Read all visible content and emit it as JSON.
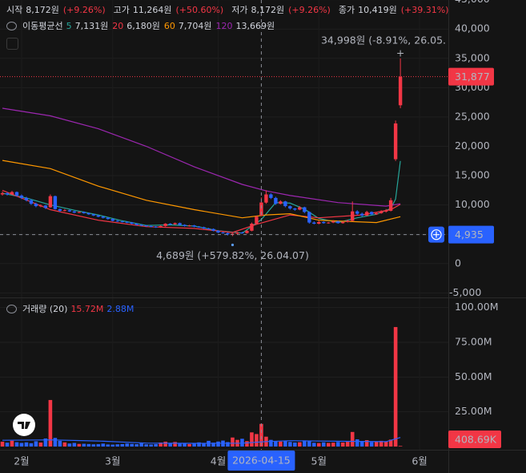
{
  "chart_data": {
    "type": "candlestick",
    "header": [
      {
        "label": "시작",
        "value": "8,172원",
        "change": "(+9.26%)"
      },
      {
        "label": "고가",
        "value": "11,264원",
        "change": "(+50.60%)"
      },
      {
        "label": "저가",
        "value": "8,172원",
        "change": "(+9.26%)"
      },
      {
        "label": "종가",
        "value": "10,419원",
        "change": "(+39.31%)"
      }
    ],
    "up_color": "#f23645",
    "down_color": "#2962ff",
    "ohlc": [
      [
        11800,
        12300,
        11600,
        12000
      ],
      [
        12000,
        12200,
        11600,
        11800
      ],
      [
        11800,
        12400,
        11700,
        12200
      ],
      [
        12200,
        12300,
        11400,
        11600
      ],
      [
        11600,
        11800,
        11000,
        11200
      ],
      [
        11200,
        11400,
        10600,
        10800
      ],
      [
        10800,
        11000,
        10000,
        10200
      ],
      [
        10200,
        10400,
        9600,
        9800
      ],
      [
        9800,
        10100,
        9600,
        9900
      ],
      [
        9900,
        10000,
        9300,
        9500
      ],
      [
        9600,
        11800,
        9500,
        11500
      ],
      [
        11500,
        11600,
        9200,
        9300
      ],
      [
        9300,
        9400,
        8800,
        9000
      ],
      [
        9000,
        9300,
        8900,
        9100
      ],
      [
        9100,
        9200,
        8800,
        8900
      ],
      [
        8900,
        9000,
        8600,
        8700
      ],
      [
        8700,
        8900,
        8600,
        8800
      ],
      [
        8800,
        8900,
        8500,
        8600
      ],
      [
        8600,
        8700,
        8300,
        8400
      ],
      [
        8400,
        8500,
        8100,
        8200
      ],
      [
        8200,
        8300,
        7900,
        8000
      ],
      [
        8000,
        8100,
        7700,
        7800
      ],
      [
        7800,
        7900,
        7500,
        7600
      ],
      [
        7600,
        7700,
        7200,
        7300
      ],
      [
        7300,
        7400,
        7100,
        7200
      ],
      [
        7200,
        7300,
        7000,
        7100
      ],
      [
        7100,
        7200,
        6900,
        7000
      ],
      [
        7000,
        7100,
        6700,
        6800
      ],
      [
        6800,
        6900,
        6500,
        6600
      ],
      [
        6600,
        6700,
        6400,
        6500
      ],
      [
        6500,
        6600,
        6300,
        6400
      ],
      [
        6400,
        6500,
        6200,
        6300
      ],
      [
        6300,
        6400,
        6100,
        6200
      ],
      [
        6200,
        6500,
        6100,
        6400
      ],
      [
        6400,
        6900,
        6300,
        6800
      ],
      [
        6800,
        6900,
        6600,
        6700
      ],
      [
        6700,
        7000,
        6600,
        6900
      ],
      [
        6900,
        7000,
        6500,
        6600
      ],
      [
        6600,
        6700,
        6300,
        6400
      ],
      [
        6400,
        6600,
        6300,
        6500
      ],
      [
        6500,
        6600,
        6200,
        6300
      ],
      [
        6300,
        6400,
        6100,
        6200
      ],
      [
        6200,
        6300,
        5900,
        6000
      ],
      [
        6000,
        6100,
        5800,
        5900
      ],
      [
        5900,
        6000,
        5500,
        5600
      ],
      [
        5600,
        5700,
        5200,
        5300
      ],
      [
        5300,
        5400,
        5100,
        5200
      ],
      [
        5200,
        5300,
        4800,
        5000
      ],
      [
        5000,
        5200,
        4689,
        5100
      ],
      [
        5100,
        5400,
        5000,
        5300
      ],
      [
        5300,
        5400,
        5100,
        5200
      ],
      [
        5200,
        5700,
        5100,
        5600
      ],
      [
        5600,
        7000,
        5500,
        6800
      ],
      [
        6800,
        8200,
        6700,
        8000
      ],
      [
        8172,
        11264,
        8172,
        10419
      ],
      [
        10400,
        12500,
        10200,
        11800
      ],
      [
        11800,
        12000,
        11000,
        11200
      ],
      [
        11200,
        11400,
        10000,
        10200
      ],
      [
        10200,
        10800,
        10100,
        10600
      ],
      [
        10600,
        10700,
        9600,
        9800
      ],
      [
        9800,
        9900,
        9200,
        9400
      ],
      [
        9400,
        9500,
        9000,
        9200
      ],
      [
        9200,
        9800,
        9100,
        9600
      ],
      [
        9600,
        9700,
        8600,
        8800
      ],
      [
        8800,
        8900,
        6800,
        7000
      ],
      [
        7000,
        7200,
        6700,
        6800
      ],
      [
        6800,
        7300,
        6700,
        7100
      ],
      [
        7100,
        7200,
        6800,
        6900
      ],
      [
        6900,
        7100,
        6800,
        7000
      ],
      [
        7000,
        7400,
        6900,
        7200
      ],
      [
        7200,
        7300,
        6800,
        6900
      ],
      [
        6900,
        7200,
        6800,
        7100
      ],
      [
        7100,
        7500,
        7000,
        7300
      ],
      [
        7300,
        10600,
        7200,
        8900
      ],
      [
        8900,
        9100,
        8300,
        8500
      ],
      [
        8500,
        8700,
        8000,
        8200
      ],
      [
        8200,
        9000,
        8100,
        8800
      ],
      [
        8800,
        8900,
        8300,
        8400
      ],
      [
        8400,
        8800,
        8300,
        8600
      ],
      [
        8600,
        9100,
        8500,
        8900
      ],
      [
        8900,
        9300,
        8700,
        9000
      ],
      [
        9000,
        11200,
        8900,
        10800
      ],
      [
        17800,
        24400,
        17500,
        23900
      ],
      [
        27000,
        34998,
        26500,
        31877
      ]
    ],
    "close_labels": [
      null,
      null,
      null,
      null,
      null,
      null,
      null,
      null,
      null,
      null,
      null,
      null,
      null,
      null,
      null,
      null,
      null,
      null,
      null,
      null,
      null,
      null,
      null,
      null,
      null,
      null,
      null,
      null,
      null,
      null,
      null,
      null,
      null,
      null,
      null,
      null,
      null,
      null,
      null,
      null,
      null,
      null,
      null,
      null,
      null,
      null,
      null,
      null,
      null,
      null,
      null,
      null,
      null,
      null,
      null,
      null,
      null,
      null,
      null,
      null,
      null,
      null,
      null,
      null,
      null,
      null,
      null,
      null,
      null,
      null,
      null,
      null,
      null,
      null,
      null,
      null,
      null,
      null,
      null,
      null,
      null,
      null,
      null,
      "31,877"
    ],
    "high_note": "34,998원 (-8.91%, 26.05.",
    "low_note": "4,689원 (+579.82%, 26.04.07)",
    "xlim": [
      -0.5,
      93
    ],
    "xticks": [
      {
        "value": 4,
        "label": "2월"
      },
      {
        "value": 23,
        "label": "3월"
      },
      {
        "value": 45,
        "label": "4월"
      },
      {
        "value": 66,
        "label": "5월"
      },
      {
        "value": 87,
        "label": "6월"
      }
    ],
    "ylim": [
      -5500,
      45500
    ],
    "yticks": [
      {
        "value": 45000,
        "label": "45,000"
      },
      {
        "value": 40000,
        "label": "40,000"
      },
      {
        "value": 35000,
        "label": "35,000"
      },
      {
        "value": 30000,
        "label": "30,000"
      },
      {
        "value": 25000,
        "label": "25,000"
      },
      {
        "value": 20000,
        "label": "20,000"
      },
      {
        "value": 15000,
        "label": "15,000"
      },
      {
        "value": 10000,
        "label": "10,000"
      },
      {
        "value": 5000,
        "label": "5,000"
      },
      0,
      {
        "value": -5000,
        "label": "-5,000"
      }
    ],
    "grid": true,
    "crosshair": {
      "x": {
        "value": 54,
        "label": "2026-04-15"
      },
      "y": {
        "value": 4935,
        "label": "4,935"
      }
    },
    "moving_averages": {
      "title": "이동평균선",
      "lines": [
        {
          "name": "5",
          "value_text": "7,131원",
          "color": "#26a69a",
          "x": [
            0,
            5,
            10,
            15,
            20,
            25,
            30,
            35,
            40,
            45,
            50,
            54,
            57,
            60,
            63,
            66,
            70,
            74,
            78,
            81,
            82,
            83
          ],
          "values": [
            12000,
            11200,
            10000,
            9100,
            8300,
            7300,
            6500,
            6600,
            6400,
            5600,
            5200,
            7500,
            10400,
            10300,
            9300,
            7700,
            7000,
            7800,
            8400,
            9400,
            11000,
            17500
          ]
        },
        {
          "name": "20",
          "value_text": "6,180원",
          "color": "#f23645",
          "x": [
            0,
            10,
            20,
            30,
            40,
            48,
            53,
            60,
            66,
            75,
            81,
            83
          ],
          "values": [
            12500,
            9200,
            7400,
            6300,
            6000,
            5300,
            6700,
            8300,
            7800,
            8300,
            9200,
            10100
          ]
        },
        {
          "name": "60",
          "value_text": "7,704원",
          "color": "#ff9800",
          "x": [
            0,
            10,
            20,
            30,
            40,
            50,
            55,
            60,
            66,
            78,
            83
          ],
          "values": [
            17600,
            16200,
            13200,
            10800,
            9200,
            7800,
            8300,
            8500,
            7400,
            7000,
            8000
          ]
        },
        {
          "name": "120",
          "value_text": "13,669원",
          "color": "#9c27b0",
          "x": [
            0,
            10,
            20,
            30,
            40,
            50,
            55,
            60,
            70,
            80,
            83
          ],
          "values": [
            26500,
            25200,
            23000,
            20000,
            16500,
            13500,
            12400,
            11600,
            10400,
            9800,
            10200
          ]
        }
      ]
    },
    "volume": {
      "title": "거래량 (20)",
      "legend": [
        {
          "text": "15.72M",
          "color": "#f23645"
        },
        {
          "text": "2.88M",
          "color": "#2962ff"
        }
      ],
      "values": [
        3.5,
        2.8,
        4.2,
        3.1,
        2.6,
        3.0,
        2.4,
        3.8,
        2.9,
        5.8,
        33.5,
        6.2,
        4.1,
        3.0,
        2.2,
        2.6,
        1.9,
        2.0,
        1.8,
        1.6,
        1.7,
        2.1,
        1.5,
        1.4,
        1.6,
        1.8,
        2.2,
        1.9,
        1.7,
        2.5,
        1.6,
        1.5,
        1.8,
        2.9,
        3.5,
        2.4,
        3.3,
        2.0,
        2.6,
        1.8,
        2.2,
        3.0,
        2.5,
        4.1,
        2.8,
        3.6,
        4.3,
        3.2,
        6.5,
        4.8,
        5.6,
        3.9,
        10.2,
        9.0,
        16.3,
        7.1,
        4.8,
        4.0,
        3.6,
        3.9,
        3.3,
        2.9,
        3.1,
        4.4,
        3.8,
        2.7,
        2.5,
        3.0,
        2.6,
        2.8,
        3.3,
        2.9,
        3.4,
        10.5,
        5.2,
        4.0,
        4.6,
        3.2,
        3.5,
        4.1,
        3.8,
        5.0,
        86.0,
        0.40869
      ],
      "value_labels": [
        null,
        null,
        null,
        null,
        null,
        null,
        null,
        null,
        null,
        null,
        null,
        null,
        null,
        null,
        null,
        null,
        null,
        null,
        null,
        null,
        null,
        null,
        null,
        null,
        null,
        null,
        null,
        null,
        null,
        null,
        null,
        null,
        null,
        null,
        null,
        null,
        null,
        null,
        null,
        null,
        null,
        null,
        null,
        null,
        null,
        null,
        null,
        null,
        null,
        null,
        null,
        null,
        null,
        null,
        null,
        null,
        null,
        null,
        null,
        null,
        null,
        null,
        null,
        null,
        null,
        null,
        null,
        null,
        null,
        null,
        null,
        null,
        null,
        null,
        null,
        null,
        null,
        null,
        null,
        null,
        null,
        null,
        null,
        "408.69K"
      ],
      "ma": {
        "color": "#2962ff",
        "x": [
          0,
          10,
          20,
          30,
          40,
          50,
          55,
          60,
          70,
          80,
          83
        ],
        "values": [
          4.5,
          4.8,
          4.0,
          2.5,
          2.3,
          2.4,
          3.6,
          4.2,
          3.8,
          3.5,
          6.5
        ]
      },
      "ylim": [
        0,
        105
      ],
      "yticks": [
        {
          "value": 100,
          "label": "100.00M"
        },
        {
          "value": 75,
          "label": "75.00M"
        },
        {
          "value": 50,
          "label": "50.00M"
        },
        {
          "value": 25,
          "label": "25.00M"
        }
      ]
    }
  }
}
